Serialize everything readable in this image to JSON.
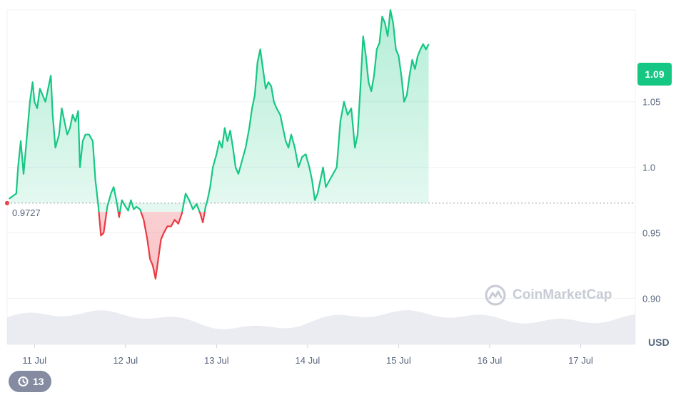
{
  "chart_data": {
    "type": "line",
    "x_ticks": [
      "11 Jul",
      "12 Jul",
      "13 Jul",
      "14 Jul",
      "15 Jul",
      "16 Jul",
      "17 Jul"
    ],
    "y_ticks": [
      "1.05",
      "1.0",
      "0.95",
      "0.90"
    ],
    "ylim": [
      0.865,
      1.12
    ],
    "x_range": [
      10.7,
      17.6
    ],
    "unit_label": "USD",
    "current_price": "1.09",
    "baseline": {
      "value": 0.9727,
      "label": "0.9727"
    },
    "series": [
      {
        "values": [
          [
            10.72,
            0.976
          ],
          [
            10.8,
            0.98
          ],
          [
            10.82,
            1.0
          ],
          [
            10.85,
            1.02
          ],
          [
            10.88,
            0.995
          ],
          [
            10.9,
            1.01
          ],
          [
            10.95,
            1.05
          ],
          [
            10.98,
            1.065
          ],
          [
            11.0,
            1.05
          ],
          [
            11.03,
            1.045
          ],
          [
            11.06,
            1.06
          ],
          [
            11.09,
            1.055
          ],
          [
            11.12,
            1.05
          ],
          [
            11.15,
            1.06
          ],
          [
            11.18,
            1.07
          ],
          [
            11.2,
            1.04
          ],
          [
            11.23,
            1.015
          ],
          [
            11.27,
            1.025
          ],
          [
            11.3,
            1.045
          ],
          [
            11.33,
            1.035
          ],
          [
            11.36,
            1.025
          ],
          [
            11.39,
            1.03
          ],
          [
            11.42,
            1.04
          ],
          [
            11.45,
            1.035
          ],
          [
            11.48,
            1.043
          ],
          [
            11.5,
            1.0
          ],
          [
            11.53,
            1.02
          ],
          [
            11.56,
            1.025
          ],
          [
            11.6,
            1.025
          ],
          [
            11.64,
            1.02
          ],
          [
            11.67,
            0.99
          ],
          [
            11.7,
            0.972
          ],
          [
            11.73,
            0.948
          ],
          [
            11.76,
            0.95
          ],
          [
            11.8,
            0.97
          ],
          [
            11.84,
            0.98
          ],
          [
            11.87,
            0.985
          ],
          [
            11.9,
            0.975
          ],
          [
            11.93,
            0.962
          ],
          [
            11.96,
            0.975
          ],
          [
            12.0,
            0.97
          ],
          [
            12.03,
            0.967
          ],
          [
            12.06,
            0.975
          ],
          [
            12.09,
            0.968
          ],
          [
            12.12,
            0.97
          ],
          [
            12.16,
            0.968
          ],
          [
            12.2,
            0.96
          ],
          [
            12.24,
            0.945
          ],
          [
            12.27,
            0.93
          ],
          [
            12.3,
            0.925
          ],
          [
            12.33,
            0.915
          ],
          [
            12.36,
            0.93
          ],
          [
            12.39,
            0.945
          ],
          [
            12.42,
            0.95
          ],
          [
            12.46,
            0.955
          ],
          [
            12.5,
            0.955
          ],
          [
            12.54,
            0.96
          ],
          [
            12.58,
            0.957
          ],
          [
            12.62,
            0.965
          ],
          [
            12.66,
            0.98
          ],
          [
            12.7,
            0.975
          ],
          [
            12.74,
            0.968
          ],
          [
            12.78,
            0.972
          ],
          [
            12.82,
            0.965
          ],
          [
            12.85,
            0.958
          ],
          [
            12.88,
            0.97
          ],
          [
            12.9,
            0.975
          ],
          [
            12.93,
            0.985
          ],
          [
            12.96,
            1.0
          ],
          [
            13.0,
            1.01
          ],
          [
            13.03,
            1.02
          ],
          [
            13.06,
            1.015
          ],
          [
            13.09,
            1.03
          ],
          [
            13.12,
            1.02
          ],
          [
            13.15,
            1.028
          ],
          [
            13.18,
            1.015
          ],
          [
            13.21,
            1.0
          ],
          [
            13.24,
            0.995
          ],
          [
            13.28,
            1.005
          ],
          [
            13.32,
            1.015
          ],
          [
            13.36,
            1.03
          ],
          [
            13.39,
            1.045
          ],
          [
            13.42,
            1.055
          ],
          [
            13.45,
            1.08
          ],
          [
            13.48,
            1.09
          ],
          [
            13.51,
            1.075
          ],
          [
            13.54,
            1.06
          ],
          [
            13.57,
            1.065
          ],
          [
            13.6,
            1.062
          ],
          [
            13.63,
            1.05
          ],
          [
            13.66,
            1.045
          ],
          [
            13.7,
            1.04
          ],
          [
            13.73,
            1.03
          ],
          [
            13.76,
            1.02
          ],
          [
            13.79,
            1.015
          ],
          [
            13.82,
            1.025
          ],
          [
            13.86,
            1.015
          ],
          [
            13.9,
            1.0
          ],
          [
            13.94,
            1.008
          ],
          [
            13.98,
            1.01
          ],
          [
            14.02,
            1.0
          ],
          [
            14.05,
            0.99
          ],
          [
            14.08,
            0.975
          ],
          [
            14.11,
            0.98
          ],
          [
            14.14,
            0.99
          ],
          [
            14.17,
            1.0
          ],
          [
            14.2,
            0.985
          ],
          [
            14.24,
            0.99
          ],
          [
            14.28,
            0.995
          ],
          [
            14.32,
            1.0
          ],
          [
            14.36,
            1.035
          ],
          [
            14.4,
            1.05
          ],
          [
            14.44,
            1.04
          ],
          [
            14.48,
            1.045
          ],
          [
            14.52,
            1.015
          ],
          [
            14.55,
            1.025
          ],
          [
            14.58,
            1.06
          ],
          [
            14.61,
            1.1
          ],
          [
            14.64,
            1.085
          ],
          [
            14.67,
            1.065
          ],
          [
            14.7,
            1.058
          ],
          [
            14.73,
            1.07
          ],
          [
            14.76,
            1.09
          ],
          [
            14.79,
            1.095
          ],
          [
            14.82,
            1.115
          ],
          [
            14.85,
            1.11
          ],
          [
            14.88,
            1.1
          ],
          [
            14.91,
            1.12
          ],
          [
            14.94,
            1.11
          ],
          [
            14.97,
            1.09
          ],
          [
            15.0,
            1.085
          ],
          [
            15.03,
            1.07
          ],
          [
            15.06,
            1.05
          ],
          [
            15.09,
            1.055
          ],
          [
            15.12,
            1.07
          ],
          [
            15.15,
            1.082
          ],
          [
            15.18,
            1.075
          ],
          [
            15.21,
            1.085
          ],
          [
            15.24,
            1.09
          ],
          [
            15.27,
            1.094
          ],
          [
            15.3,
            1.09
          ],
          [
            15.33,
            1.094
          ]
        ]
      }
    ]
  },
  "watermark": {
    "text": "CoinMarketCap"
  },
  "history_badge": {
    "icon": "history-icon",
    "count": "13"
  },
  "colors": {
    "up": "#16c784",
    "down": "#ea3943",
    "grid": "#f0f1f4",
    "label": "#58667e",
    "volume": "#e4e6ec"
  }
}
